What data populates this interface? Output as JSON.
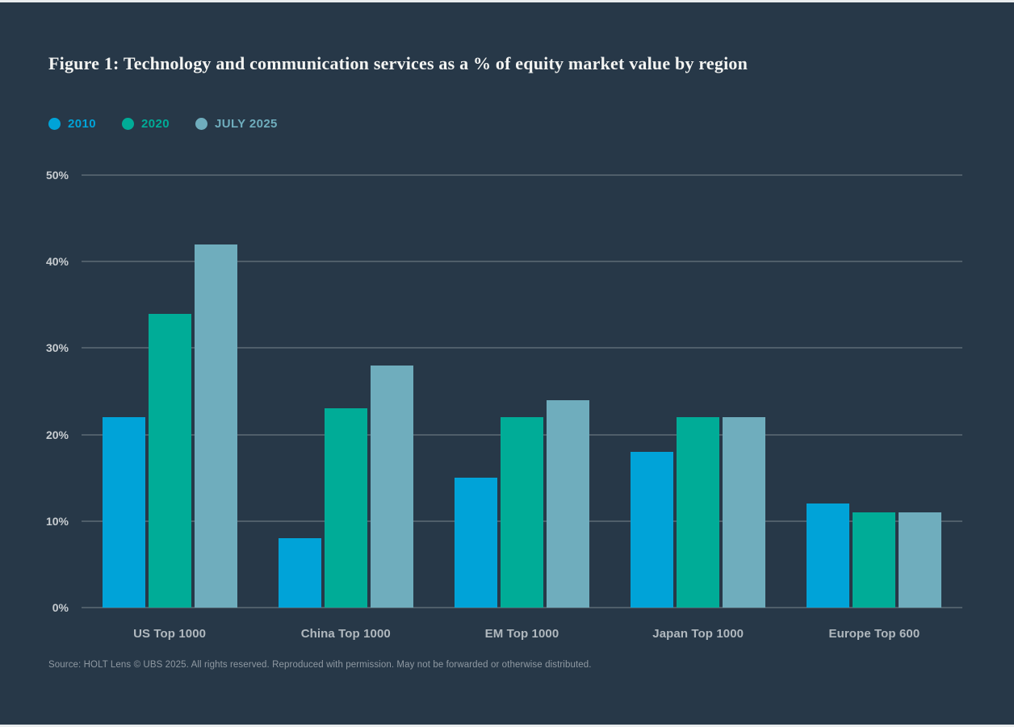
{
  "title": "Figure 1: Technology and communication services as a % of equity market value by region",
  "legend": {
    "items": [
      {
        "label": "2010",
        "color": "#00a3d8"
      },
      {
        "label": "2020",
        "color": "#00ac97"
      },
      {
        "label": "JULY 2025",
        "color": "#6fadbd"
      }
    ],
    "position": "top-left"
  },
  "source": "Source: HOLT Lens © UBS 2025. All rights reserved. Reproduced with permission. May not be forwarded or otherwise distributed.",
  "colors": {
    "background": "#273848",
    "gridline": "#4f5e6a",
    "title_text": "#f3f4f2",
    "y_tick_text": "#c8cdd1",
    "x_label_text": "#b0b8be",
    "source_text": "#8f99a2",
    "page_edge": "#e9ecee"
  },
  "chart_data": {
    "type": "bar",
    "title": "Figure 1: Technology and communication services as a % of equity market value by region",
    "categories": [
      "US Top 1000",
      "China Top 1000",
      "EM Top 1000",
      "Japan Top 1000",
      "Europe Top 600"
    ],
    "series": [
      {
        "name": "2010",
        "color": "#00a3d8",
        "values": [
          22,
          8,
          15,
          18,
          12
        ]
      },
      {
        "name": "2020",
        "color": "#00ac97",
        "values": [
          34,
          23,
          22,
          22,
          11
        ]
      },
      {
        "name": "JULY 2025",
        "color": "#6fadbd",
        "values": [
          42,
          28,
          24,
          22,
          11
        ]
      }
    ],
    "xlabel": "",
    "ylabel": "",
    "ylim": [
      0,
      50
    ],
    "yticks": [
      0,
      10,
      20,
      30,
      40,
      50
    ],
    "ytick_format": "{v}%",
    "grid": true,
    "legend_position": "top-left"
  }
}
